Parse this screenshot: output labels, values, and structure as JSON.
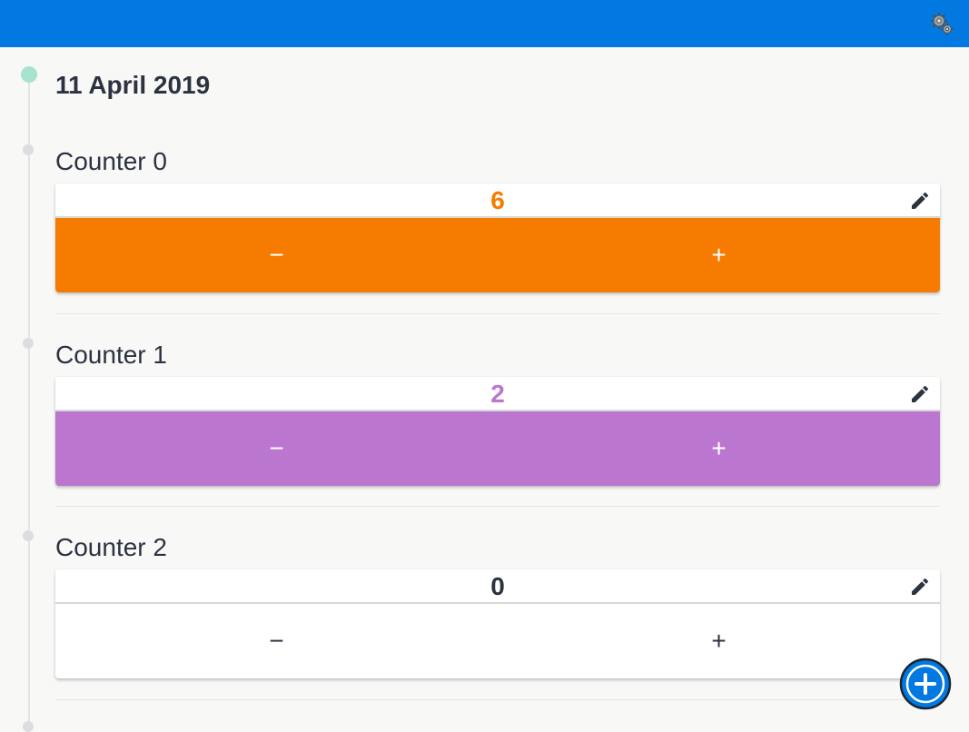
{
  "app": {
    "accent": "#0279e0",
    "settings_icon": "gear-icon"
  },
  "timeline": {
    "date": "11 April 2019"
  },
  "counters": [
    {
      "label": "Counter 0",
      "value": "6",
      "color": "#f57c00",
      "minus": "−",
      "plus": "+"
    },
    {
      "label": "Counter 1",
      "value": "2",
      "color": "#bb77cf",
      "minus": "−",
      "plus": "+"
    },
    {
      "label": "Counter 2",
      "value": "0",
      "color": "#ffffff",
      "minus": "−",
      "plus": "+"
    }
  ],
  "actions": {
    "edit_icon": "pencil-icon",
    "add_icon": "add-circle-icon"
  }
}
